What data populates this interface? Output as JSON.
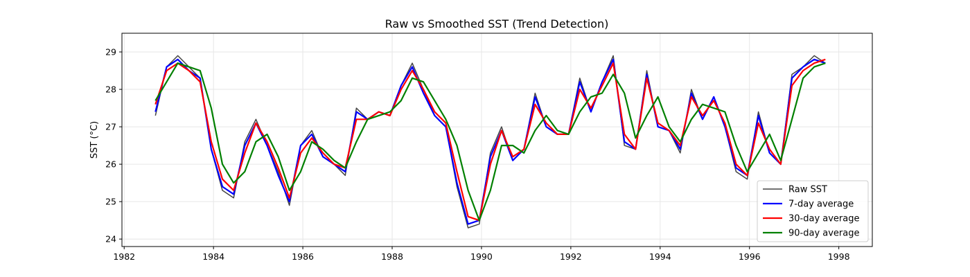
{
  "chart_data": {
    "type": "line",
    "title": "Raw vs Smoothed SST (Trend Detection)",
    "xlabel": "",
    "ylabel": "SST (°C)",
    "xlim": [
      1981.95,
      1998.75
    ],
    "ylim": [
      23.8,
      29.5
    ],
    "xticks": [
      1982,
      1984,
      1986,
      1988,
      1990,
      1992,
      1994,
      1996,
      1998
    ],
    "yticks": [
      24,
      25,
      26,
      27,
      28,
      29
    ],
    "grid": true,
    "legend": "lower-right",
    "x_step_years": 0.25,
    "series": [
      {
        "name": "Raw SST",
        "color": "#444444",
        "x_start": 1982.7,
        "values": [
          27.3,
          28.6,
          28.9,
          28.6,
          28.3,
          26.4,
          25.3,
          25.1,
          26.6,
          27.2,
          26.5,
          25.8,
          24.9,
          26.5,
          26.9,
          26.2,
          26.0,
          25.7,
          27.5,
          27.2,
          27.4,
          27.3,
          28.1,
          28.7,
          28.0,
          27.3,
          27.0,
          25.4,
          24.3,
          24.4,
          26.3,
          27.0,
          26.1,
          26.4,
          27.9,
          27.0,
          26.8,
          26.8,
          28.3,
          27.4,
          28.2,
          28.9,
          26.5,
          26.4,
          28.5,
          27.0,
          26.9,
          26.3,
          28.0,
          27.2,
          27.8,
          27.0,
          25.8,
          25.6,
          27.4,
          26.3,
          26.0,
          28.4,
          28.6,
          28.9,
          28.7
        ],
        "stroke_width": 1.5
      },
      {
        "name": "7-day average",
        "color": "#0000ff",
        "x_start": 1982.7,
        "values": [
          27.4,
          28.6,
          28.8,
          28.5,
          28.3,
          26.4,
          25.4,
          25.2,
          26.5,
          27.1,
          26.5,
          25.7,
          25.0,
          26.5,
          26.8,
          26.2,
          26.0,
          25.8,
          27.4,
          27.2,
          27.4,
          27.3,
          28.1,
          28.6,
          27.9,
          27.3,
          27.0,
          25.5,
          24.4,
          24.5,
          26.2,
          26.9,
          26.1,
          26.4,
          27.8,
          27.0,
          26.8,
          26.8,
          28.2,
          27.4,
          28.2,
          28.8,
          26.6,
          26.4,
          28.4,
          27.0,
          26.9,
          26.4,
          27.9,
          27.2,
          27.8,
          27.0,
          25.9,
          25.7,
          27.3,
          26.3,
          26.0,
          28.3,
          28.6,
          28.8,
          28.7
        ],
        "stroke_width": 2.2
      },
      {
        "name": "30-day average",
        "color": "#ff0000",
        "x_start": 1982.7,
        "values": [
          27.6,
          28.5,
          28.7,
          28.5,
          28.2,
          26.6,
          25.6,
          25.3,
          26.3,
          27.1,
          26.6,
          25.9,
          25.1,
          26.3,
          26.7,
          26.3,
          26.0,
          25.9,
          27.2,
          27.2,
          27.4,
          27.3,
          28.0,
          28.5,
          28.0,
          27.4,
          27.1,
          25.8,
          24.6,
          24.5,
          26.0,
          26.9,
          26.2,
          26.4,
          27.6,
          27.1,
          26.8,
          26.8,
          28.0,
          27.5,
          28.1,
          28.7,
          26.8,
          26.4,
          28.3,
          27.1,
          26.9,
          26.5,
          27.8,
          27.3,
          27.7,
          27.1,
          26.0,
          25.7,
          27.1,
          26.4,
          26.0,
          28.1,
          28.5,
          28.7,
          28.8
        ],
        "stroke_width": 2.2
      },
      {
        "name": "90-day average",
        "color": "#008000",
        "x_start": 1982.7,
        "values": [
          27.7,
          28.2,
          28.7,
          28.6,
          28.5,
          27.5,
          26.0,
          25.5,
          25.8,
          26.6,
          26.8,
          26.2,
          25.3,
          25.8,
          26.6,
          26.4,
          26.1,
          25.9,
          26.6,
          27.2,
          27.3,
          27.4,
          27.7,
          28.3,
          28.2,
          27.7,
          27.2,
          26.5,
          25.3,
          24.5,
          25.3,
          26.5,
          26.5,
          26.3,
          26.9,
          27.3,
          26.9,
          26.8,
          27.4,
          27.8,
          27.9,
          28.4,
          27.9,
          26.7,
          27.3,
          27.8,
          27.0,
          26.6,
          27.2,
          27.6,
          27.5,
          27.4,
          26.5,
          25.8,
          26.3,
          26.8,
          26.1,
          27.2,
          28.3,
          28.6,
          28.7
        ],
        "stroke_width": 2.2
      }
    ]
  }
}
